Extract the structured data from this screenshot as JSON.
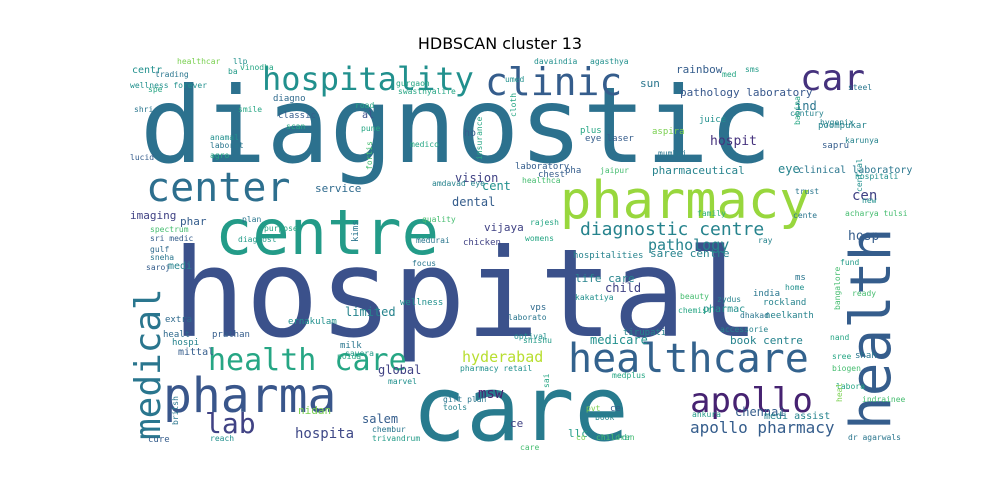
{
  "chart_data": {
    "type": "wordcloud",
    "title": "HDBSCAN cluster 13",
    "colormap": "viridis",
    "background": "#ffffff",
    "words": [
      {
        "text": "hospital",
        "weight": 1.0
      },
      {
        "text": "diagnostic",
        "weight": 0.9
      },
      {
        "text": "care",
        "weight": 0.78
      },
      {
        "text": "centre",
        "weight": 0.58
      },
      {
        "text": "health",
        "weight": 0.55
      },
      {
        "text": "pharmacy",
        "weight": 0.5
      },
      {
        "text": "pharma",
        "weight": 0.42
      },
      {
        "text": "healthcare",
        "weight": 0.38
      },
      {
        "text": "center",
        "weight": 0.37
      },
      {
        "text": "medical",
        "weight": 0.34
      },
      {
        "text": "clinic",
        "weight": 0.34
      },
      {
        "text": "car",
        "weight": 0.32
      },
      {
        "text": "hospitality",
        "weight": 0.3
      },
      {
        "text": "apollo",
        "weight": 0.28
      },
      {
        "text": "health care",
        "weight": 0.27
      },
      {
        "text": "lab",
        "weight": 0.24
      },
      {
        "text": "diagnostic centre",
        "weight": 0.18
      },
      {
        "text": "apollo pharmacy",
        "weight": 0.17
      },
      {
        "text": "pathology",
        "weight": 0.15
      },
      {
        "text": "hyderabad",
        "weight": 0.14
      },
      {
        "text": "msw",
        "weight": 0.13
      },
      {
        "text": "hospita",
        "weight": 0.13
      },
      {
        "text": "cen",
        "weight": 0.13
      },
      {
        "text": "hosp",
        "weight": 0.12
      },
      {
        "text": "hospit",
        "weight": 0.12
      },
      {
        "text": "vision",
        "weight": 0.11
      },
      {
        "text": "dental",
        "weight": 0.11
      },
      {
        "text": "medicare",
        "weight": 0.11
      },
      {
        "text": "limited",
        "weight": 0.1
      },
      {
        "text": "pathology laboratory",
        "weight": 0.1
      },
      {
        "text": "ind",
        "weight": 0.1
      },
      {
        "text": "eye",
        "weight": 0.1
      },
      {
        "text": "cent",
        "weight": 0.1
      },
      {
        "text": "child",
        "weight": 0.1
      },
      {
        "text": "salem",
        "weight": 0.1
      },
      {
        "text": "global",
        "weight": 0.1
      },
      {
        "text": "chennai",
        "weight": 0.1
      },
      {
        "text": "service",
        "weight": 0.09
      },
      {
        "text": "imaging",
        "weight": 0.09
      },
      {
        "text": "vijaya",
        "weight": 0.09
      },
      {
        "text": "pharmaceutical",
        "weight": 0.09
      },
      {
        "text": "ce",
        "weight": 0.09
      },
      {
        "text": "phar",
        "weight": 0.09
      },
      {
        "text": "rainbow",
        "weight": 0.08
      },
      {
        "text": "sun",
        "weight": 0.08
      },
      {
        "text": "life care",
        "weight": 0.08
      },
      {
        "text": "saree centre",
        "weight": 0.08
      },
      {
        "text": "book centre",
        "weight": 0.08
      },
      {
        "text": "nidan",
        "weight": 0.08
      },
      {
        "text": "llc",
        "weight": 0.08
      },
      {
        "text": "medi",
        "weight": 0.07
      },
      {
        "text": "centr",
        "weight": 0.07
      },
      {
        "text": "ho",
        "weight": 0.07
      },
      {
        "text": "al",
        "weight": 0.07
      },
      {
        "text": "clinical laboratory",
        "weight": 0.07
      },
      {
        "text": "medi assist",
        "weight": 0.07
      },
      {
        "text": "mittal",
        "weight": 0.07
      },
      {
        "text": "pharmac",
        "weight": 0.07
      },
      {
        "text": "cure",
        "weight": 0.06
      },
      {
        "text": "pha",
        "weight": 0.06
      },
      {
        "text": "ms",
        "weight": 0.06
      },
      {
        "text": "india",
        "weight": 0.06
      },
      {
        "text": "hospitalities",
        "weight": 0.06
      },
      {
        "text": "chicken",
        "weight": 0.06
      },
      {
        "text": "poompukar",
        "weight": 0.06
      },
      {
        "text": "juice",
        "weight": 0.06
      },
      {
        "text": "tirupati",
        "weight": 0.06
      },
      {
        "text": "vps",
        "weight": 0.06
      },
      {
        "text": "ce",
        "weight": 0.06
      },
      {
        "text": "shah",
        "weight": 0.06
      },
      {
        "text": "eye laser",
        "weight": 0.05
      },
      {
        "text": "laboratory",
        "weight": 0.05
      },
      {
        "text": "sapru",
        "weight": 0.05
      },
      {
        "text": "plus",
        "weight": 0.05
      },
      {
        "text": "aspira",
        "weight": 0.05
      },
      {
        "text": "diagno",
        "weight": 0.05
      },
      {
        "text": "classic",
        "weight": 0.05
      },
      {
        "text": "hospi",
        "weight": 0.05
      },
      {
        "text": "healt",
        "weight": 0.05
      },
      {
        "text": "extra",
        "weight": 0.05
      },
      {
        "text": "wellness",
        "weight": 0.05
      },
      {
        "text": "rockland",
        "weight": 0.05
      },
      {
        "text": "neelkanth",
        "weight": 0.05
      },
      {
        "text": "kims",
        "weight": 0.05
      },
      {
        "text": "ernakulam",
        "weight": 0.05
      },
      {
        "text": "milk",
        "weight": 0.05
      },
      {
        "text": "prathan",
        "weight": 0.05
      },
      {
        "text": "pharmacy retail",
        "weight": 0.05
      },
      {
        "text": "ankura",
        "weight": 0.05
      },
      {
        "text": "dr agarwals",
        "weight": 0.05
      },
      {
        "text": "children",
        "weight": 0.05
      },
      {
        "text": "insurance",
        "weight": 0.05
      },
      {
        "text": "chest",
        "weight": 0.05
      },
      {
        "text": "trading",
        "weight": 0.04
      },
      {
        "text": "wellness forever",
        "weight": 0.04
      },
      {
        "text": "shri",
        "weight": 0.04
      },
      {
        "text": "lucid",
        "weight": 0.04
      },
      {
        "text": "sri medic",
        "weight": 0.04
      },
      {
        "text": "gulf",
        "weight": 0.04
      },
      {
        "text": "sneha",
        "weight": 0.04
      },
      {
        "text": "saroj",
        "weight": 0.04
      },
      {
        "text": "britsh",
        "weight": 0.04
      },
      {
        "text": "reach",
        "weight": 0.04
      },
      {
        "text": "spectrum",
        "weight": 0.04
      },
      {
        "text": "plan",
        "weight": 0.04
      },
      {
        "text": "anamal",
        "weight": 0.04
      },
      {
        "text": "laborat",
        "weight": 0.04
      },
      {
        "text": "agro",
        "weight": 0.04
      },
      {
        "text": "quality",
        "weight": 0.04
      },
      {
        "text": "medurai",
        "weight": 0.04
      },
      {
        "text": "focus",
        "weight": 0.04
      },
      {
        "text": "mumbai",
        "weight": 0.04
      },
      {
        "text": "century",
        "weight": 0.04
      },
      {
        "text": "steel",
        "weight": 0.04
      },
      {
        "text": "hygenix",
        "weight": 0.04
      },
      {
        "text": "karunya",
        "weight": 0.04
      },
      {
        "text": "trust",
        "weight": 0.04
      },
      {
        "text": "acharya tulsi",
        "weight": 0.04
      },
      {
        "text": "cente",
        "weight": 0.04
      },
      {
        "text": "ray",
        "weight": 0.04
      },
      {
        "text": "fund",
        "weight": 0.04
      },
      {
        "text": "ready",
        "weight": 0.04
      },
      {
        "text": "home",
        "weight": 0.04
      },
      {
        "text": "dhakad",
        "weight": 0.04
      },
      {
        "text": "zydus",
        "weight": 0.04
      },
      {
        "text": "accessorie",
        "weight": 0.04
      },
      {
        "text": "beauty",
        "weight": 0.04
      },
      {
        "text": "kakatiya",
        "weight": 0.04
      },
      {
        "text": "laborato",
        "weight": 0.04
      },
      {
        "text": "chemist",
        "weight": 0.04
      },
      {
        "text": "womens",
        "weight": 0.04
      },
      {
        "text": "rajesh",
        "weight": 0.04
      },
      {
        "text": "healthca",
        "weight": 0.04
      },
      {
        "text": "amdavad eye",
        "weight": 0.04
      },
      {
        "text": "noida",
        "weight": 0.04
      },
      {
        "text": "savera",
        "weight": 0.04
      },
      {
        "text": "shishu",
        "weight": 0.04
      },
      {
        "text": "optival",
        "weight": 0.04
      },
      {
        "text": "gift plan",
        "weight": 0.04
      },
      {
        "text": "tools",
        "weight": 0.04
      },
      {
        "text": "chembur",
        "weight": 0.04
      },
      {
        "text": "trivandrum",
        "weight": 0.04
      },
      {
        "text": "marvel",
        "weight": 0.04
      },
      {
        "text": "medplus",
        "weight": 0.04
      },
      {
        "text": "pvt",
        "weight": 0.04
      },
      {
        "text": "book",
        "weight": 0.04
      },
      {
        "text": "co",
        "weight": 0.04
      },
      {
        "text": "dr",
        "weight": 0.04
      },
      {
        "text": "pune",
        "weight": 0.04
      },
      {
        "text": "medico",
        "weight": 0.04
      },
      {
        "text": "fortis",
        "weight": 0.04
      },
      {
        "text": "road",
        "weight": 0.04
      },
      {
        "text": "smile",
        "weight": 0.04
      },
      {
        "text": "scan",
        "weight": 0.04
      },
      {
        "text": "ba",
        "weight": 0.04
      },
      {
        "text": "llp",
        "weight": 0.04
      },
      {
        "text": "healthcar",
        "weight": 0.04
      },
      {
        "text": "umed",
        "weight": 0.04
      },
      {
        "text": "davaindia",
        "weight": 0.04
      },
      {
        "text": "agasthya",
        "weight": 0.04
      },
      {
        "text": "med",
        "weight": 0.04
      },
      {
        "text": "sms",
        "weight": 0.04
      },
      {
        "text": "babina",
        "weight": 0.04
      },
      {
        "text": "jaipur",
        "weight": 0.04
      },
      {
        "text": "family",
        "weight": 0.04
      },
      {
        "text": "hospitali",
        "weight": 0.04
      },
      {
        "text": "central",
        "weight": 0.04
      },
      {
        "text": "new",
        "weight": 0.04
      },
      {
        "text": "sree",
        "weight": 0.04
      },
      {
        "text": "biogen",
        "weight": 0.04
      },
      {
        "text": "labora",
        "weight": 0.04
      },
      {
        "text": "indrainee",
        "weight": 0.04
      },
      {
        "text": "bangalore",
        "weight": 0.04
      },
      {
        "text": "vinodha",
        "weight": 0.04
      },
      {
        "text": "gurgaon",
        "weight": 0.04
      },
      {
        "text": "swasthyalife",
        "weight": 0.04
      },
      {
        "text": "spe",
        "weight": 0.04
      },
      {
        "text": "diagnost",
        "weight": 0.04
      },
      {
        "text": "purpose",
        "weight": 0.04
      },
      {
        "text": "cloth",
        "weight": 0.04
      },
      {
        "text": "sai",
        "weight": 0.04
      },
      {
        "text": "nand",
        "weight": 0.04
      },
      {
        "text": "care",
        "weight": 0.04
      },
      {
        "text": "heal",
        "weight": 0.04
      }
    ]
  }
}
